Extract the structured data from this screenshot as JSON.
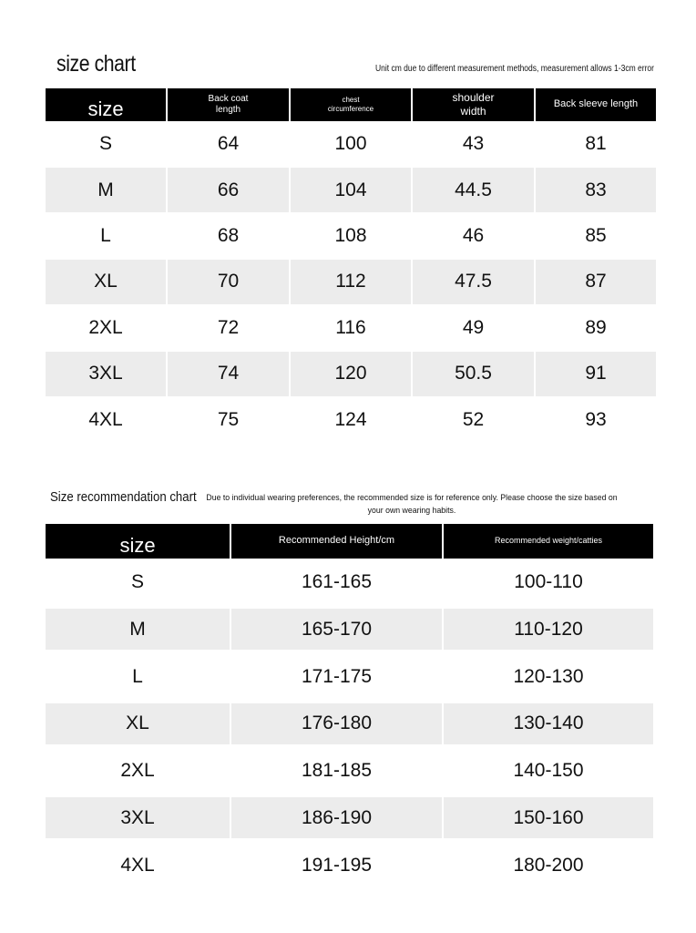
{
  "size_chart": {
    "title": "size chart",
    "note": "Unit cm due to different measurement methods, measurement allows 1-3cm error",
    "headers": [
      "size",
      "Back coat length",
      "chest circumference",
      "shoulder width",
      "Back sleeve length"
    ],
    "rows": [
      [
        "S",
        "64",
        "100",
        "43",
        "81"
      ],
      [
        "M",
        "66",
        "104",
        "44.5",
        "83"
      ],
      [
        "L",
        "68",
        "108",
        "46",
        "85"
      ],
      [
        "XL",
        "70",
        "112",
        "47.5",
        "87"
      ],
      [
        "2XL",
        "72",
        "116",
        "49",
        "89"
      ],
      [
        "3XL",
        "74",
        "120",
        "50.5",
        "91"
      ],
      [
        "4XL",
        "75",
        "124",
        "52",
        "93"
      ]
    ]
  },
  "recommendation_chart": {
    "title": "Size recommendation chart",
    "note": "Due to individual wearing preferences, the recommended size is for reference only. Please choose the size based on your own wearing habits.",
    "headers": [
      "size",
      "Recommended Height/cm",
      "Recommended weight/catties"
    ],
    "rows": [
      [
        "S",
        "161-165",
        "100-110"
      ],
      [
        "M",
        "165-170",
        "110-120"
      ],
      [
        "L",
        "171-175",
        "120-130"
      ],
      [
        "XL",
        "176-180",
        "130-140"
      ],
      [
        "2XL",
        "181-185",
        "140-150"
      ],
      [
        "3XL",
        "186-190",
        "150-160"
      ],
      [
        "4XL",
        "191-195",
        "180-200"
      ]
    ]
  },
  "colors": {
    "header_bg": "#000000",
    "stripe_bg": "#ececec"
  }
}
